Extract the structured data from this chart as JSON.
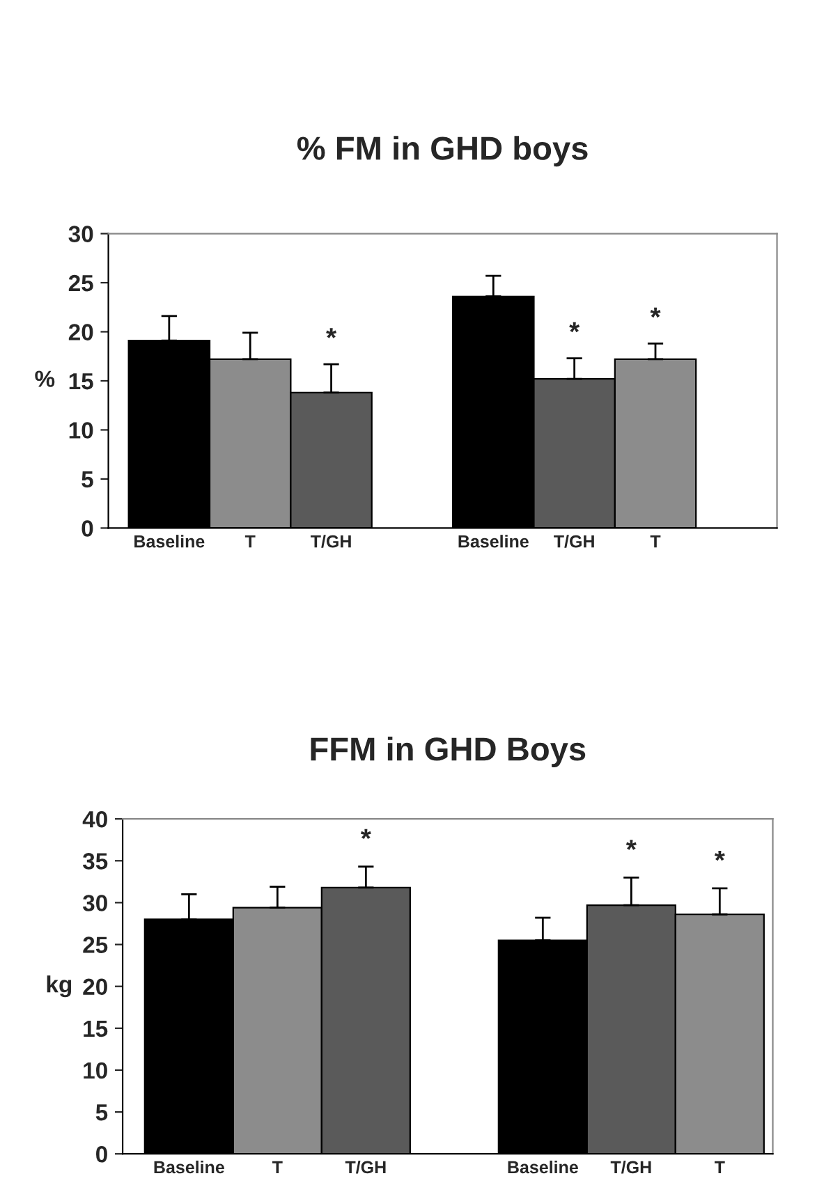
{
  "chart_data": [
    {
      "type": "bar",
      "title": "% FM in GHD boys",
      "ylabel": "%",
      "categories": [
        "Baseline",
        "T",
        "T/GH",
        null,
        "Baseline",
        "T/GH",
        "T",
        null
      ],
      "values": [
        19.1,
        17.2,
        13.8,
        null,
        23.6,
        15.2,
        17.2,
        null
      ],
      "errors": [
        [
          19.1,
          21.6
        ],
        [
          17.2,
          19.9
        ],
        [
          13.8,
          16.7
        ],
        null,
        [
          23.6,
          25.7
        ],
        [
          15.2,
          17.3
        ],
        [
          17.2,
          18.8
        ],
        null
      ],
      "value_labels": [
        null,
        null,
        "*",
        null,
        null,
        "*",
        "*",
        null
      ],
      "colors": [
        "#000000",
        "#8c8c8c",
        "#5a5a5a",
        "#ffffff",
        "#000000",
        "#5a5a5a",
        "#8c8c8c",
        "#ffffff"
      ],
      "ylim": [
        0,
        30
      ],
      "yticks": [
        0,
        5,
        10,
        15,
        20,
        25,
        30
      ],
      "grid": false
    },
    {
      "type": "bar",
      "title": "FFM in GHD Boys",
      "ylabel": "kg",
      "categories": [
        "Baseline",
        "T",
        "T/GH",
        null,
        "Baseline",
        "T/GH",
        "T"
      ],
      "values": [
        28.0,
        29.4,
        31.8,
        null,
        25.5,
        29.7,
        28.6
      ],
      "errors": [
        [
          28.0,
          31.0
        ],
        [
          29.4,
          31.9
        ],
        [
          31.8,
          34.3
        ],
        null,
        [
          25.5,
          28.2
        ],
        [
          29.7,
          33.0
        ],
        [
          28.6,
          31.7
        ]
      ],
      "value_labels": [
        null,
        null,
        "*",
        null,
        null,
        "*",
        "*"
      ],
      "colors": [
        "#000000",
        "#8c8c8c",
        "#5a5a5a",
        "#ffffff",
        "#000000",
        "#5a5a5a",
        "#8c8c8c"
      ],
      "ylim": [
        0,
        40
      ],
      "yticks": [
        0,
        5,
        10,
        15,
        20,
        25,
        30,
        35,
        40
      ],
      "grid": false
    }
  ]
}
